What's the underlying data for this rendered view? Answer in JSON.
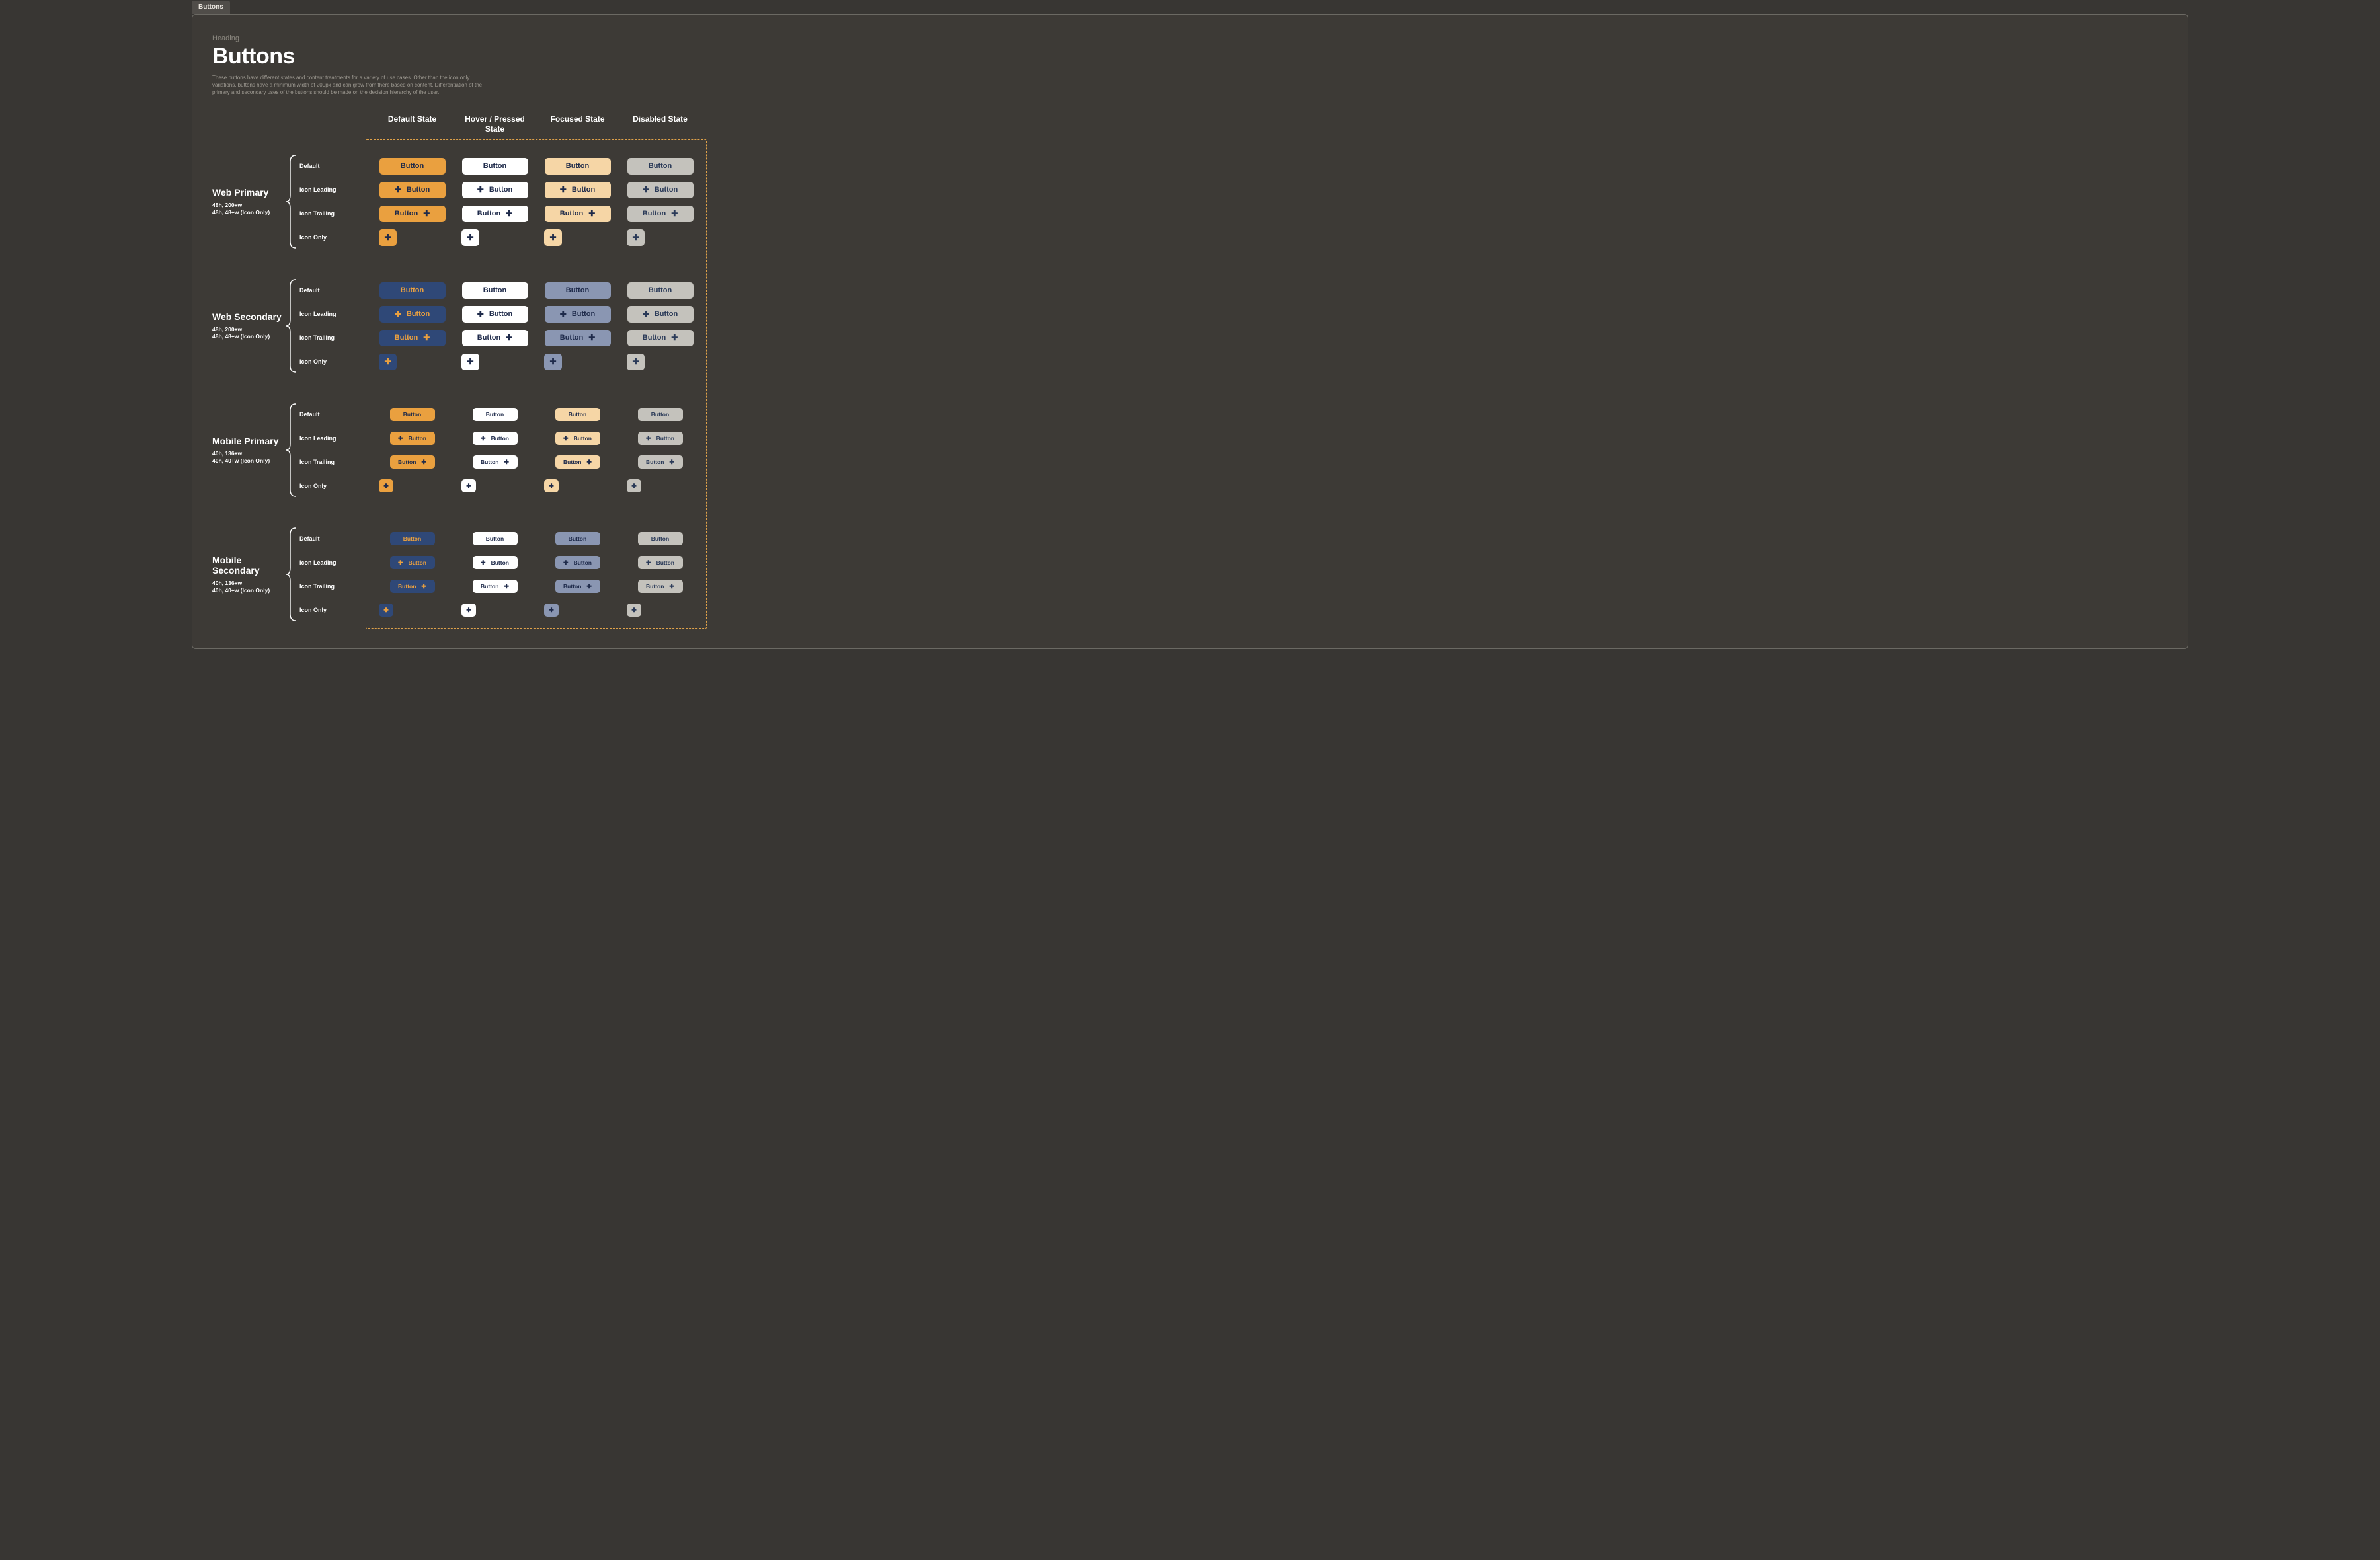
{
  "tab": {
    "label": "Buttons"
  },
  "header": {
    "eyebrow": "Heading",
    "title": "Buttons",
    "description": "These buttons have different states and content treatments for a variety of use cases. Other than the icon only variations, buttons have a minimum width of 200px and can grow from there based on content. Differentiation of the primary and secondary uses of the buttons should be made on the decision hierarchy of the user."
  },
  "columns": [
    "Default State",
    "Hover / Pressed State",
    "Focused State",
    "Disabled State"
  ],
  "row_variants": {
    "default": "Default",
    "icon_leading": "Icon Leading",
    "icon_trailing": "Icon Trailing",
    "icon_only": "Icon Only"
  },
  "button_label": "Button",
  "icon": {
    "plus": "✚"
  },
  "sections": [
    {
      "id": "web-primary",
      "title": "Web Primary",
      "meta1": "48h, 200+w",
      "meta2": "48h, 48+w (Icon Only)",
      "size": "web",
      "states": {
        "default": {
          "bg": "#eaa03f",
          "fg": "#1e2a4a"
        },
        "hover": {
          "bg": "#ffffff",
          "fg": "#1e2a4a"
        },
        "focused": {
          "bg": "#f6d6a6",
          "fg": "#1e2a4a"
        },
        "disabled": {
          "bg": "#c4c2bc",
          "fg": "#2a3a58"
        }
      }
    },
    {
      "id": "web-secondary",
      "title": "Web Secondary",
      "meta1": "48h, 200+w",
      "meta2": "48h, 48+w (Icon Only)",
      "size": "web",
      "states": {
        "default": {
          "bg": "#2f4877",
          "fg": "#eaa03f"
        },
        "hover": {
          "bg": "#ffffff",
          "fg": "#1e2a4a"
        },
        "focused": {
          "bg": "#8a96b2",
          "fg": "#1e2a4a"
        },
        "disabled": {
          "bg": "#c4c2bc",
          "fg": "#2a3a58"
        }
      }
    },
    {
      "id": "mobile-primary",
      "title": "Mobile Primary",
      "meta1": "40h, 136+w",
      "meta2": "40h, 40+w (Icon Only)",
      "size": "mob",
      "states": {
        "default": {
          "bg": "#eaa03f",
          "fg": "#1e2a4a"
        },
        "hover": {
          "bg": "#ffffff",
          "fg": "#1e2a4a"
        },
        "focused": {
          "bg": "#f6d6a6",
          "fg": "#1e2a4a"
        },
        "disabled": {
          "bg": "#c4c2bc",
          "fg": "#2a3a58"
        }
      }
    },
    {
      "id": "mobile-secondary",
      "title": "Mobile Secondary",
      "meta1": "40h, 136+w",
      "meta2": "40h, 40+w (Icon Only)",
      "size": "mob",
      "states": {
        "default": {
          "bg": "#2f4877",
          "fg": "#eaa03f"
        },
        "hover": {
          "bg": "#ffffff",
          "fg": "#1e2a4a"
        },
        "focused": {
          "bg": "#8a96b2",
          "fg": "#1e2a4a"
        },
        "disabled": {
          "bg": "#c4c2bc",
          "fg": "#2a3a58"
        }
      }
    }
  ],
  "layout": {
    "dashed_border_color": "#e0a24a",
    "canvas_bg": "#3d3a36",
    "page_bg": "#383633"
  }
}
